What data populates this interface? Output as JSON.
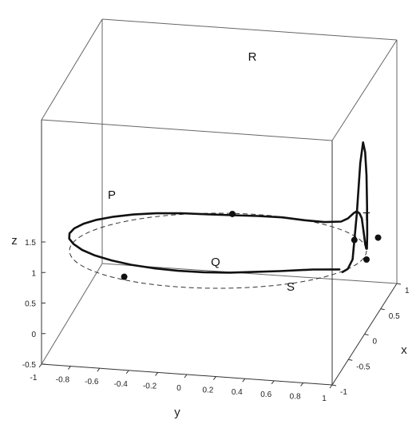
{
  "chart_data": {
    "type": "line3d",
    "xlabel": "x",
    "ylabel": "y",
    "zlabel": "z",
    "xlim": [
      -1,
      1
    ],
    "ylim": [
      -1,
      1
    ],
    "zlim": [
      -0.5,
      1.5
    ],
    "x_ticks": [
      "-1",
      "-0.5",
      "0",
      "0.5",
      "1"
    ],
    "y_ticks": [
      "-1",
      "-0.8",
      "-0.6",
      "-0.4",
      "-0.2",
      "0",
      "0.2",
      "0.4",
      "0.6",
      "0.8",
      "1"
    ],
    "z_ticks": [
      "-0.5",
      "0",
      "0.5",
      "1",
      "1.5"
    ],
    "reference_circle": {
      "style": "dashed",
      "radius": 1,
      "z": 0
    },
    "wave_labels": [
      "P",
      "Q",
      "R",
      "S",
      "T"
    ],
    "markers_on_circle": [
      {
        "x": -0.84,
        "y": -0.55,
        "z": 0
      },
      {
        "x": 1.0,
        "y": 0.0,
        "z": 0
      },
      {
        "x": 0.5,
        "y": 0.87,
        "z": 0
      },
      {
        "x": 0.0,
        "y": 1.0,
        "z": 0
      },
      {
        "x": 0.6,
        "y": 1.02,
        "z": 0
      }
    ],
    "trajectory": {
      "theta_deg": [
        120,
        135,
        150,
        160,
        170,
        180,
        190,
        200,
        210,
        220,
        230,
        240,
        250,
        260,
        270,
        280,
        290,
        300,
        310,
        320,
        330,
        340,
        350,
        360,
        10,
        20,
        30,
        40,
        50,
        55,
        60,
        63,
        66,
        69,
        72,
        75,
        78,
        81,
        84,
        87,
        90,
        94,
        98,
        102,
        106,
        110,
        114,
        118
      ],
      "z": [
        0.12,
        0.22,
        0.26,
        0.27,
        0.26,
        0.25,
        0.24,
        0.23,
        0.22,
        0.21,
        0.2,
        0.19,
        0.18,
        0.16,
        0.14,
        0.12,
        0.1,
        0.08,
        0.06,
        0.04,
        0.02,
        0.0,
        -0.02,
        -0.02,
        0.0,
        0.03,
        0.05,
        0.1,
        0.2,
        0.3,
        0.44,
        0.5,
        0.5,
        0.45,
        0.25,
        0.1,
        0.05,
        0.08,
        0.35,
        0.85,
        1.38,
        1.8,
        2.0,
        1.7,
        0.9,
        0.2,
        0.08,
        0.06
      ]
    }
  }
}
